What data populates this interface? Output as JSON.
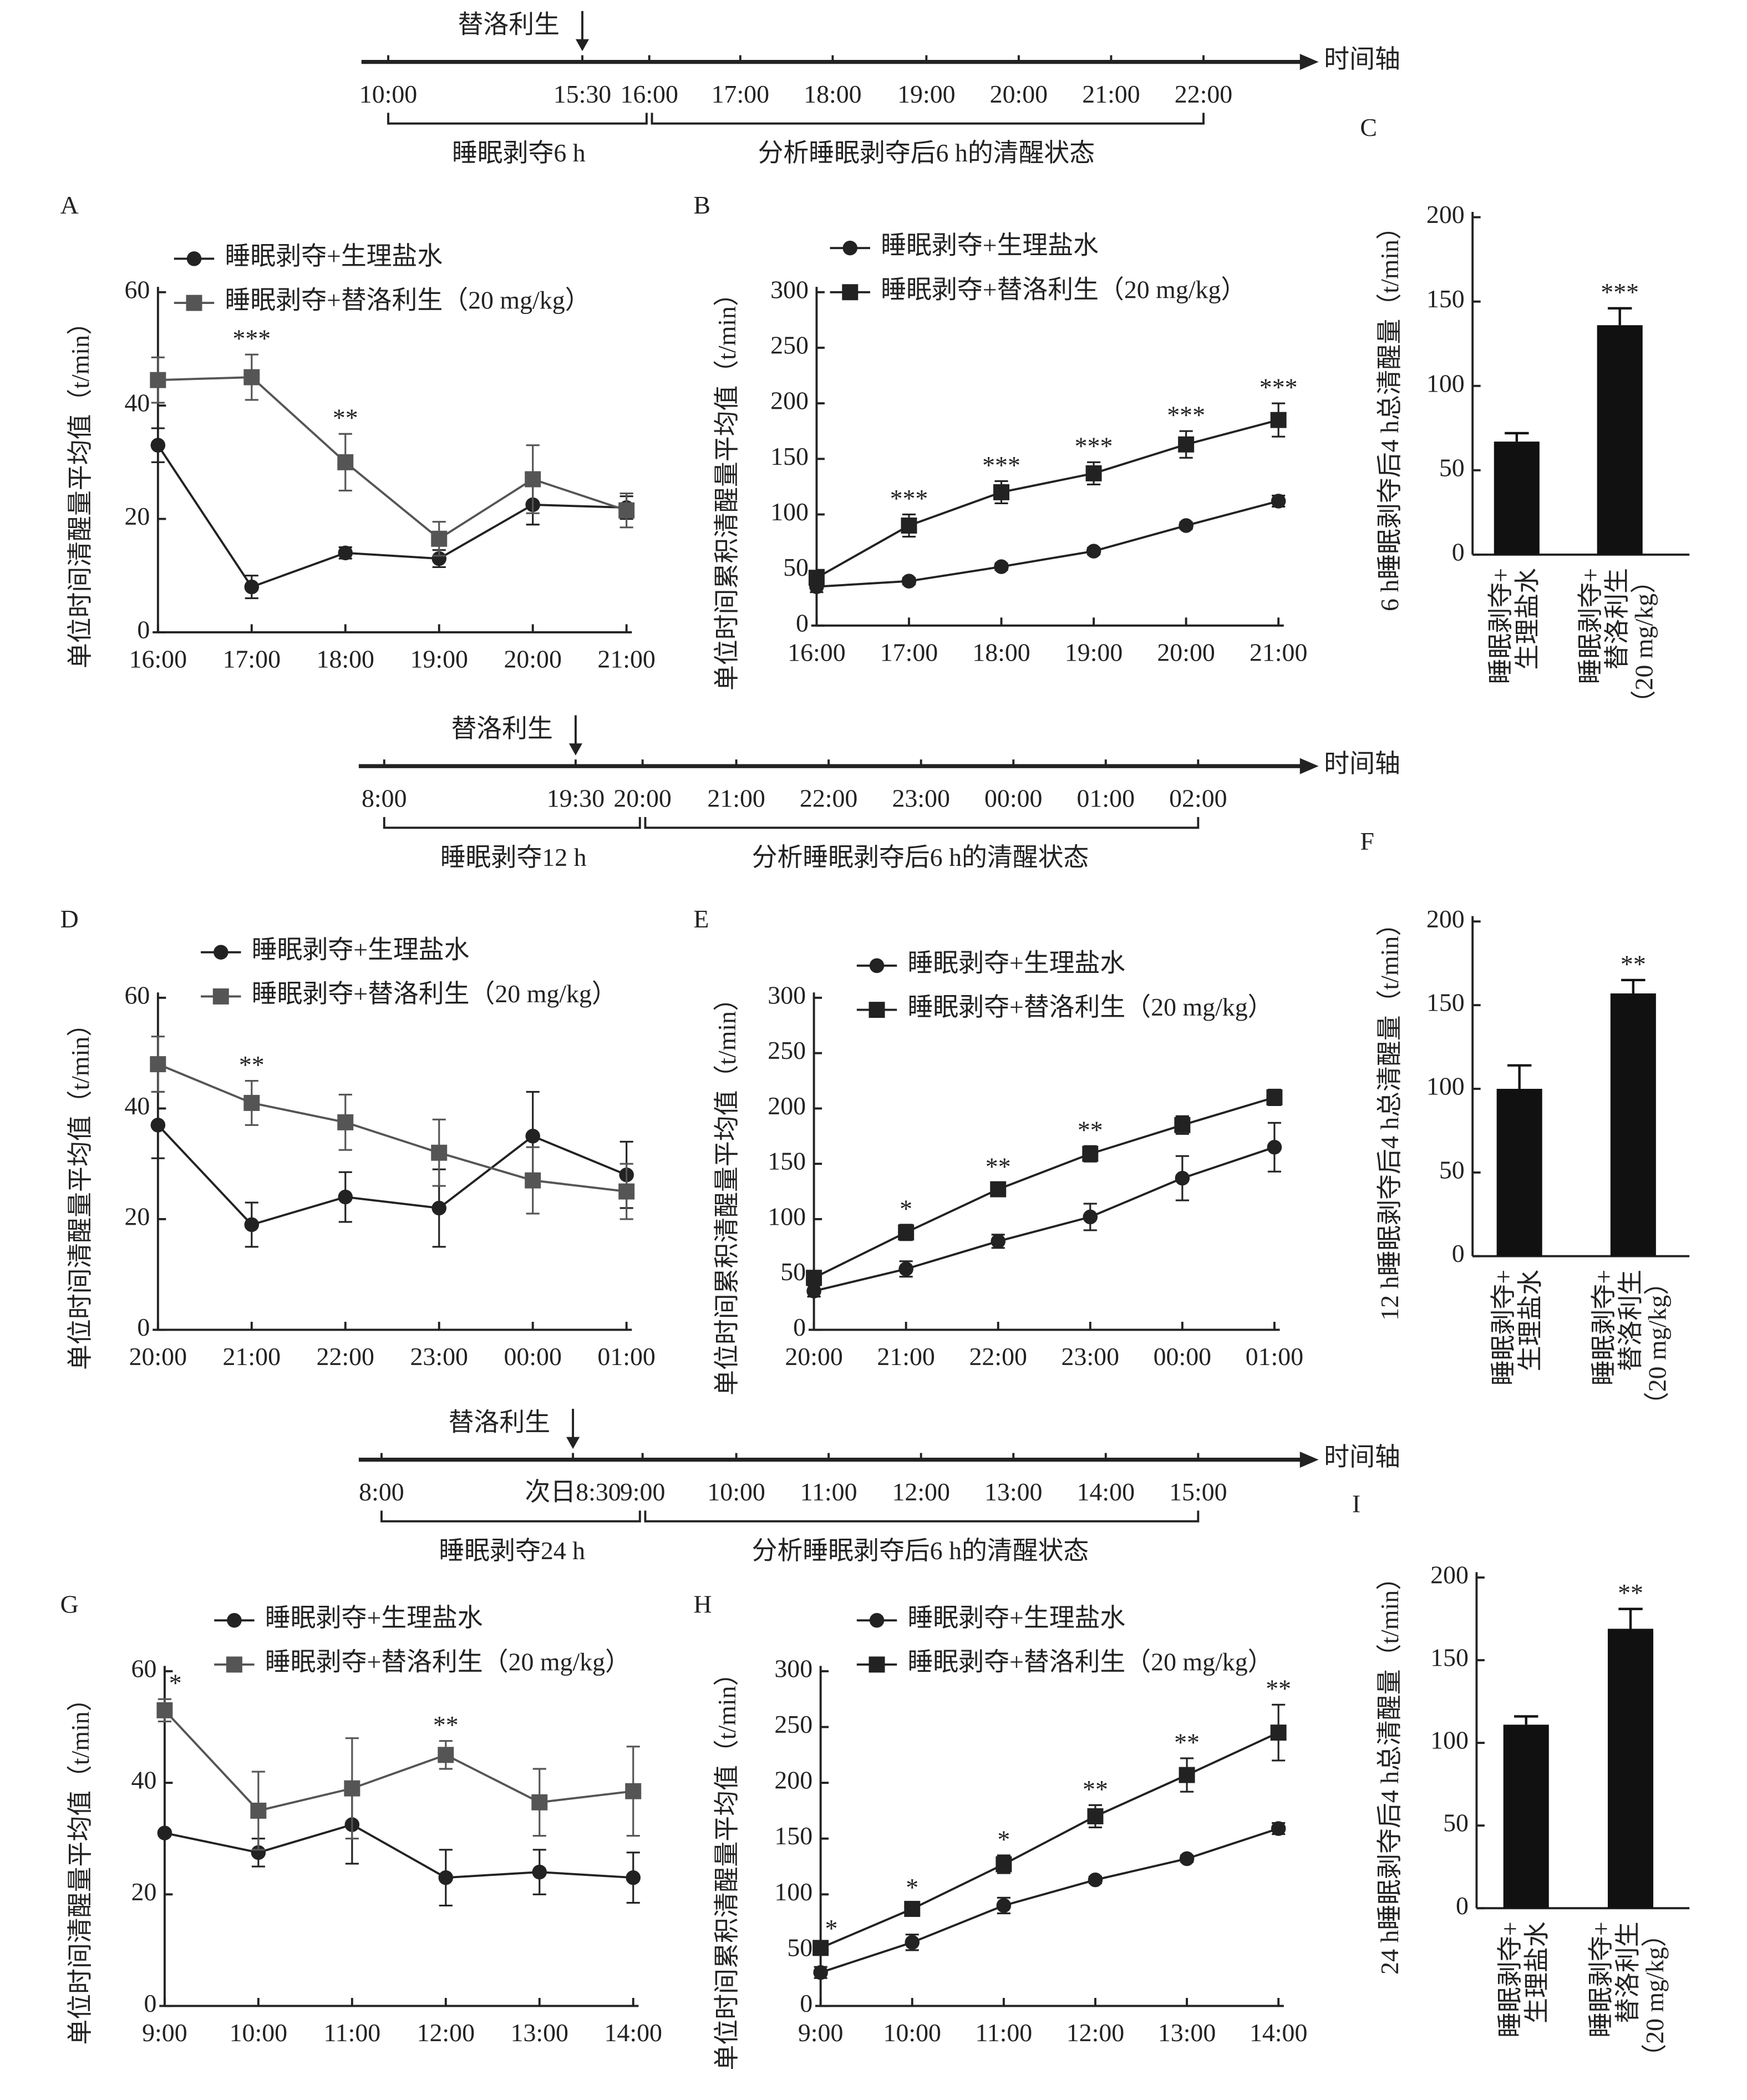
{
  "timelines": [
    {
      "drug_label": "替洛利生",
      "axis_label": "时间轴",
      "ticks": [
        "10:00",
        "15:30",
        "16:00",
        "17:00",
        "18:00",
        "19:00",
        "20:00",
        "21:00",
        "22:00"
      ],
      "left_bracket": "睡眠剥夺6 h",
      "right_bracket": "分析睡眠剥夺后6 h的清醒状态"
    },
    {
      "drug_label": "替洛利生",
      "axis_label": "时间轴",
      "ticks": [
        "8:00",
        "19:30",
        "20:00",
        "21:00",
        "22:00",
        "23:00",
        "00:00",
        "01:00",
        "02:00"
      ],
      "left_bracket": "睡眠剥夺12 h",
      "right_bracket": "分析睡眠剥夺后6 h的清醒状态"
    },
    {
      "drug_label": "替洛利生",
      "axis_label": "时间轴",
      "ticks": [
        "8:00",
        "次日8:30",
        "9:00",
        "10:00",
        "11:00",
        "12:00",
        "13:00",
        "14:00",
        "15:00"
      ],
      "left_bracket": "睡眠剥夺24 h",
      "right_bracket": "分析睡眠剥夺后6 h的清醒状态"
    }
  ],
  "chart_data": [
    {
      "type": "line",
      "panel": "A",
      "ylabel": "单位时间清醒量平均值（t/min）",
      "categories": [
        "16:00",
        "17:00",
        "18:00",
        "19:00",
        "20:00",
        "21:00"
      ],
      "ylim": [
        0,
        60
      ],
      "yticks": [
        0,
        20,
        40,
        60
      ],
      "series": [
        {
          "name": "睡眠剥夺+生理盐水",
          "color": "#222222",
          "marker": "circle",
          "values": [
            33,
            8,
            14,
            13,
            22.5,
            22
          ],
          "errors": [
            3,
            2,
            1,
            1.5,
            3.5,
            2
          ]
        },
        {
          "name": "睡眠剥夺+替洛利生（20 mg/kg）",
          "color": "#555555",
          "marker": "square",
          "values": [
            44.5,
            45,
            30,
            16.5,
            27,
            21.5
          ],
          "errors": [
            4,
            4,
            5,
            3,
            6,
            3
          ]
        }
      ],
      "significance": [
        null,
        "***",
        "**",
        null,
        null,
        null
      ]
    },
    {
      "type": "line",
      "panel": "B",
      "ylabel": "单位时间累积清醒量平均值（t/min）",
      "categories": [
        "16:00",
        "17:00",
        "18:00",
        "19:00",
        "20:00",
        "21:00"
      ],
      "ylim": [
        0,
        300
      ],
      "yticks": [
        0,
        50,
        100,
        150,
        200,
        250,
        300
      ],
      "series": [
        {
          "name": "睡眠剥夺+生理盐水",
          "color": "#222222",
          "marker": "circle",
          "values": [
            35,
            40,
            53,
            67,
            90,
            112
          ],
          "errors": [
            5,
            3,
            3,
            3,
            3,
            5
          ]
        },
        {
          "name": "睡眠剥夺+替洛利生（20 mg/kg）",
          "color": "#222222",
          "marker": "square",
          "values": [
            43,
            90,
            120,
            137,
            163,
            185
          ],
          "errors": [
            5,
            10,
            10,
            10,
            12,
            15
          ]
        }
      ],
      "significance": [
        null,
        "***",
        "***",
        "***",
        "***",
        "***"
      ]
    },
    {
      "type": "bar",
      "panel": "C",
      "ylabel": "6 h睡眠剥夺后4 h总清醒量（t/min）",
      "categories": [
        [
          "睡眠剥夺+",
          "生理盐水"
        ],
        [
          "睡眠剥夺+",
          "替洛利生",
          "（20 mg/kg）"
        ]
      ],
      "values": [
        67,
        136
      ],
      "errors": [
        5,
        10
      ],
      "color": "#111111",
      "ylim": [
        0,
        200
      ],
      "yticks": [
        0,
        50,
        100,
        150,
        200
      ],
      "significance": [
        null,
        "***"
      ]
    },
    {
      "type": "line",
      "panel": "D",
      "ylabel": "单位时间清醒量平均值（t/min）",
      "categories": [
        "20:00",
        "21:00",
        "22:00",
        "23:00",
        "00:00",
        "01:00"
      ],
      "ylim": [
        0,
        60
      ],
      "yticks": [
        0,
        20,
        40,
        60
      ],
      "series": [
        {
          "name": "睡眠剥夺+生理盐水",
          "color": "#222222",
          "marker": "circle",
          "values": [
            37,
            19,
            24,
            22,
            35,
            28
          ],
          "errors": [
            6,
            4,
            4.5,
            7,
            8,
            6
          ]
        },
        {
          "name": "睡眠剥夺+替洛利生（20 mg/kg）",
          "color": "#555555",
          "marker": "square",
          "values": [
            48,
            41,
            37.5,
            32,
            27,
            25
          ],
          "errors": [
            5,
            4,
            5,
            6,
            6,
            5
          ]
        }
      ],
      "significance": [
        null,
        "**",
        null,
        null,
        null,
        null
      ]
    },
    {
      "type": "line",
      "panel": "E",
      "ylabel": "单位时间累积清醒量平均值（t/min）",
      "categories": [
        "20:00",
        "21:00",
        "22:00",
        "23:00",
        "00:00",
        "01:00"
      ],
      "ylim": [
        0,
        300
      ],
      "yticks": [
        0,
        50,
        100,
        150,
        200,
        250,
        300
      ],
      "series": [
        {
          "name": "睡眠剥夺+生理盐水",
          "color": "#222222",
          "marker": "circle",
          "values": [
            35,
            55,
            80,
            102,
            137,
            165
          ],
          "errors": [
            5,
            7,
            6,
            12,
            20,
            22
          ]
        },
        {
          "name": "睡眠剥夺+替洛利生（20 mg/kg）",
          "color": "#222222",
          "marker": "square",
          "values": [
            47,
            88,
            127,
            159,
            185,
            210
          ],
          "errors": [
            5,
            7,
            6,
            7,
            8,
            7
          ]
        }
      ],
      "significance": [
        null,
        "*",
        "**",
        "**",
        null,
        null
      ]
    },
    {
      "type": "bar",
      "panel": "F",
      "ylabel": "12 h睡眠剥夺后4 h总清醒量（t/min）",
      "categories": [
        [
          "睡眠剥夺+",
          "生理盐水"
        ],
        [
          "睡眠剥夺+",
          "替洛利生",
          "（20 mg/kg）"
        ]
      ],
      "values": [
        100,
        157
      ],
      "errors": [
        14,
        8
      ],
      "color": "#111111",
      "ylim": [
        0,
        200
      ],
      "yticks": [
        0,
        50,
        100,
        150,
        200
      ],
      "significance": [
        null,
        "**"
      ]
    },
    {
      "type": "line",
      "panel": "G",
      "ylabel": "单位时间清醒量平均值（t/min）",
      "categories": [
        "9:00",
        "10:00",
        "11:00",
        "12:00",
        "13:00",
        "14:00"
      ],
      "ylim": [
        0,
        60
      ],
      "yticks": [
        0,
        20,
        40,
        60
      ],
      "series": [
        {
          "name": "睡眠剥夺+生理盐水",
          "color": "#222222",
          "marker": "circle",
          "values": [
            31,
            27.5,
            32.5,
            23,
            24,
            23
          ],
          "errors": [
            0.5,
            2.5,
            7,
            5,
            4,
            4.5
          ]
        },
        {
          "name": "睡眠剥夺+替洛利生（20 mg/kg）",
          "color": "#555555",
          "marker": "square",
          "values": [
            53,
            35,
            39,
            45,
            36.5,
            38.5
          ],
          "errors": [
            2,
            7,
            9,
            2.5,
            6,
            8
          ]
        }
      ],
      "significance": [
        "*",
        null,
        null,
        "**",
        null,
        null
      ]
    },
    {
      "type": "line",
      "panel": "H",
      "ylabel": "单位时间累积清醒量平均值（t/min）",
      "categories": [
        "9:00",
        "10:00",
        "11:00",
        "12:00",
        "13:00",
        "14:00"
      ],
      "ylim": [
        0,
        300
      ],
      "yticks": [
        0,
        50,
        100,
        150,
        200,
        250,
        300
      ],
      "series": [
        {
          "name": "睡眠剥夺+生理盐水",
          "color": "#222222",
          "marker": "circle",
          "values": [
            30,
            57,
            90,
            113,
            132,
            159
          ],
          "errors": [
            5,
            7,
            7,
            3,
            3,
            5
          ]
        },
        {
          "name": "睡眠剥夺+替洛利生（20 mg/kg）",
          "color": "#222222",
          "marker": "square",
          "values": [
            52,
            87,
            127,
            170,
            207,
            245
          ],
          "errors": [
            3,
            5,
            8,
            10,
            15,
            25
          ]
        }
      ],
      "significance": [
        "*",
        "*",
        "*",
        "**",
        "**",
        "**"
      ]
    },
    {
      "type": "bar",
      "panel": "I",
      "ylabel": "24 h睡眠剥夺后4 h总清醒量（t/min）",
      "categories": [
        [
          "睡眠剥夺+",
          "生理盐水"
        ],
        [
          "睡眠剥夺+",
          "替洛利生",
          "（20 mg/kg）"
        ]
      ],
      "values": [
        111,
        169
      ],
      "errors": [
        5,
        12
      ],
      "color": "#111111",
      "ylim": [
        0,
        200
      ],
      "yticks": [
        0,
        50,
        100,
        150,
        200
      ],
      "significance": [
        null,
        "**"
      ]
    }
  ]
}
